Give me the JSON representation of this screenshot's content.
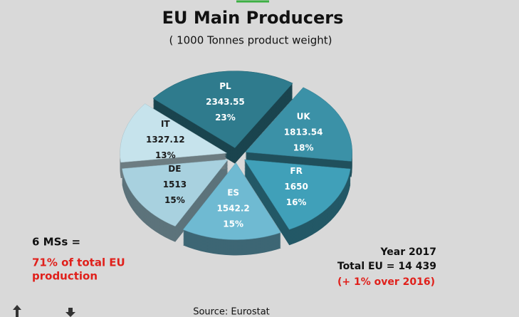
{
  "chart_data": {
    "type": "pie",
    "title": "EU Main Producers",
    "subtitle": "( 1000 Tonnes product weight)",
    "categories": [
      "PL",
      "UK",
      "FR",
      "ES",
      "DE",
      "IT"
    ],
    "values": [
      2343.55,
      1813.54,
      1650,
      1542.2,
      1513,
      1327.12
    ],
    "shares": [
      23,
      18,
      16,
      15,
      15,
      13
    ],
    "share_labels": [
      "23%",
      "18%",
      "16%",
      "15%",
      "15%",
      "13%"
    ],
    "colors": [
      "#2f7b8d",
      "#3b91a7",
      "#40a0b9",
      "#6fbad2",
      "#a8d1df",
      "#c6e3ec"
    ],
    "annotations": {
      "ms_count": "6 MSs =",
      "ms_share": "71% of total EU",
      "ms_share_2": "production",
      "year": "Year 2017",
      "total": "Total EU = 14 439",
      "change": "(+ 1% over 2016)",
      "source": "Source: Eurostat"
    }
  }
}
